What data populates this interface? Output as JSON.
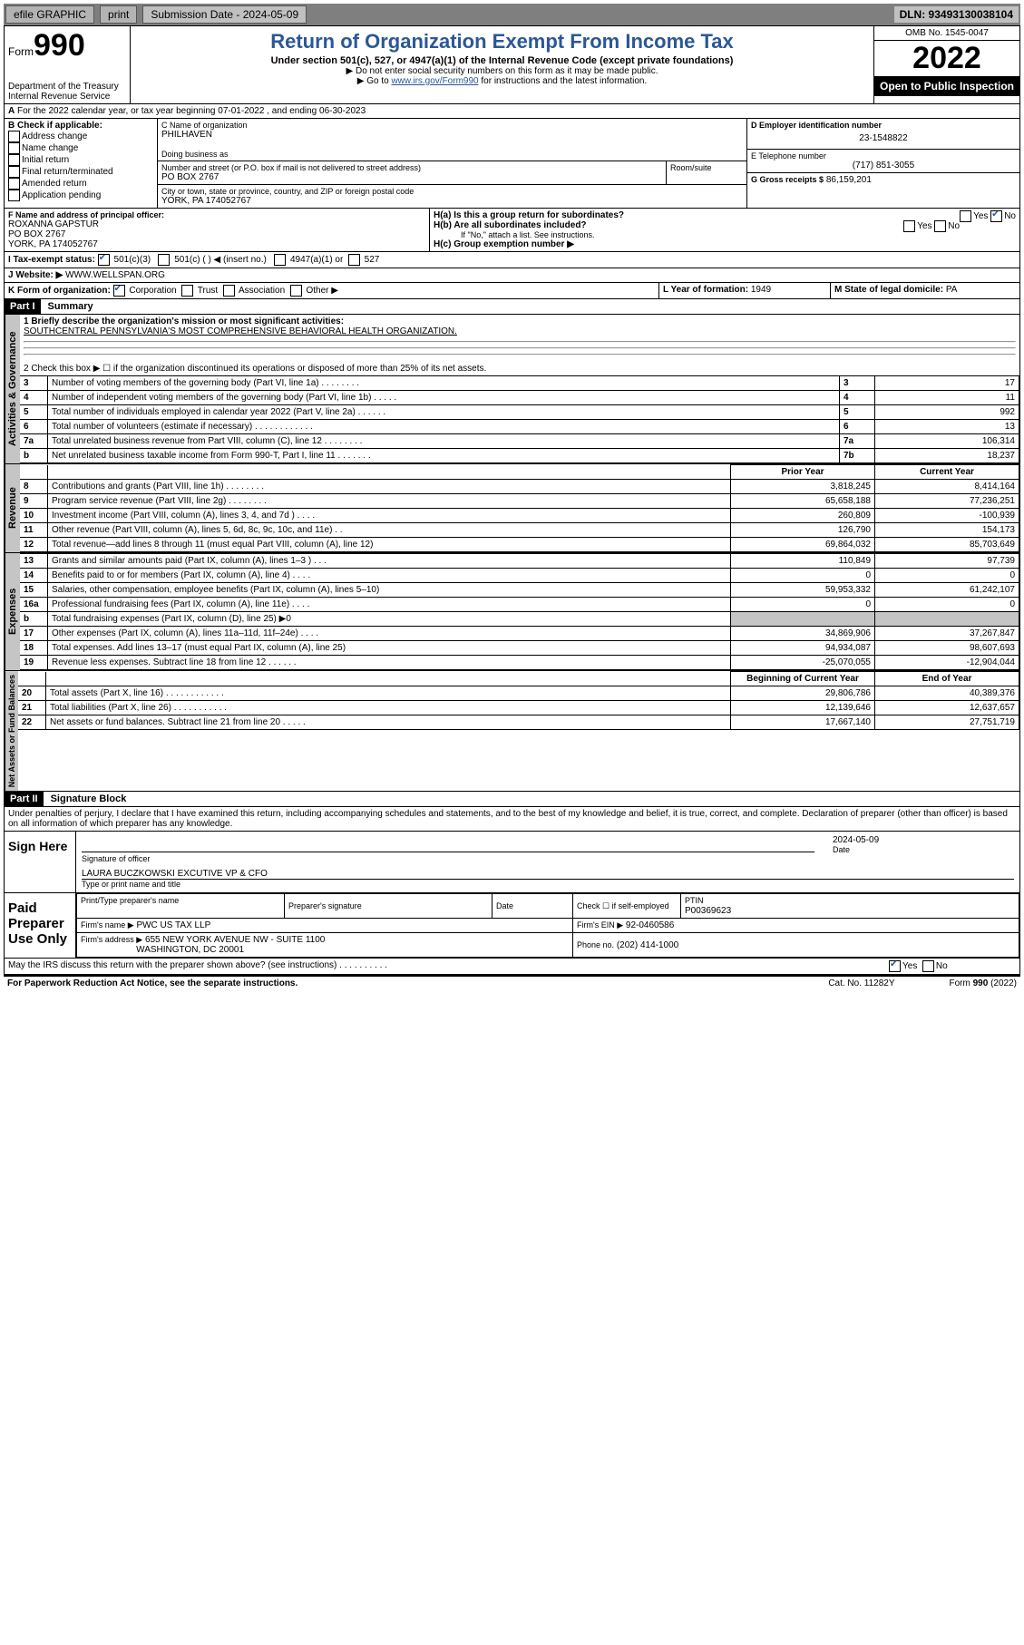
{
  "topbar": {
    "efile": "efile GRAPHIC",
    "print": "print",
    "submission": "Submission Date - 2024-05-09",
    "dln": "DLN: 93493130038104"
  },
  "header": {
    "form_word": "Form",
    "form_num": "990",
    "title": "Return of Organization Exempt From Income Tax",
    "sub": "Under section 501(c), 527, or 4947(a)(1) of the Internal Revenue Code (except private foundations)",
    "sub2a": "▶ Do not enter social security numbers on this form as it may be made public.",
    "sub2b_pre": "▶ Go to ",
    "sub2b_link": "www.irs.gov/Form990",
    "sub2b_post": " for instructions and the latest information.",
    "omb": "OMB No. 1545-0047",
    "year": "2022",
    "open_pub": "Open to Public Inspection",
    "dept": "Department of the Treasury",
    "irs": "Internal Revenue Service"
  },
  "a_line": "For the 2022 calendar year, or tax year beginning 07-01-2022    , and ending 06-30-2023",
  "b": {
    "title": "B Check if applicable:",
    "items": [
      "Address change",
      "Name change",
      "Initial return",
      "Final return/terminated",
      "Amended return",
      "Application pending"
    ]
  },
  "c": {
    "name_lbl": "C Name of organization",
    "name": "PHILHAVEN",
    "dba_lbl": "Doing business as",
    "dba": "",
    "addr_lbl": "Number and street (or P.O. box if mail is not delivered to street address)",
    "room_lbl": "Room/suite",
    "addr": "PO BOX 2767",
    "city_lbl": "City or town, state or province, country, and ZIP or foreign postal code",
    "city": "YORK, PA  174052767"
  },
  "d": {
    "lbl": "D Employer identification number",
    "val": "23-1548822"
  },
  "e": {
    "lbl": "E Telephone number",
    "val": "(717) 851-3055"
  },
  "g": {
    "lbl": "G Gross receipts $",
    "val": "86,159,201"
  },
  "f": {
    "lbl": "F  Name and address of principal officer:",
    "name": "ROXANNA GAPSTUR",
    "addr1": "PO BOX 2767",
    "addr2": "YORK, PA  174052767"
  },
  "h": {
    "a": "H(a)  Is this a group return for subordinates?",
    "b": "H(b)  Are all subordinates included?",
    "b_note": "If \"No,\" attach a list. See instructions.",
    "c": "H(c)  Group exemption number ▶",
    "yes": "Yes",
    "no": "No"
  },
  "i": {
    "lbl": "I    Tax-exempt status:",
    "o1": "501(c)(3)",
    "o2": "501(c) (   ) ◀ (insert no.)",
    "o3": "4947(a)(1) or",
    "o4": "527"
  },
  "j": {
    "lbl": "J    Website: ▶",
    "val": "WWW.WELLSPAN.ORG"
  },
  "k": {
    "lbl": "K Form of organization:",
    "o1": "Corporation",
    "o2": "Trust",
    "o3": "Association",
    "o4": "Other ▶"
  },
  "l": {
    "lbl": "L Year of formation:",
    "val": "1949"
  },
  "m": {
    "lbl": "M State of legal domicile:",
    "val": "PA"
  },
  "part1": {
    "tag": "Part I",
    "title": "Summary",
    "q1": "1   Briefly describe the organization's mission or most significant activities:",
    "mission": "SOUTHCENTRAL PENNSYLVANIA'S MOST COMPREHENSIVE BEHAVIORAL HEALTH ORGANIZATION.",
    "q2": "2   Check this box ▶ ☐  if the organization discontinued its operations or disposed of more than 25% of its net assets.",
    "rows_ag": [
      {
        "n": "3",
        "t": "Number of voting members of the governing body (Part VI, line 1a)  .    .    .    .    .    .    .    .",
        "b": "3",
        "v": "17"
      },
      {
        "n": "4",
        "t": "Number of independent voting members of the governing body (Part VI, line 1b)  .    .    .    .    .",
        "b": "4",
        "v": "11"
      },
      {
        "n": "5",
        "t": "Total number of individuals employed in calendar year 2022 (Part V, line 2a)  .    .    .    .    .    .",
        "b": "5",
        "v": "992"
      },
      {
        "n": "6",
        "t": "Total number of volunteers (estimate if necessary)  .    .    .    .    .    .    .    .    .    .    .    .",
        "b": "6",
        "v": "13"
      },
      {
        "n": "7a",
        "t": "Total unrelated business revenue from Part VIII, column (C), line 12  .    .    .    .    .    .    .    .",
        "b": "7a",
        "v": "106,314"
      },
      {
        "n": "b",
        "t": "Net unrelated business taxable income from Form 990-T, Part I, line 11  .    .    .    .    .    .    .",
        "b": "7b",
        "v": "18,237"
      }
    ],
    "hdr_py": "Prior Year",
    "hdr_cy": "Current Year",
    "rows_rev": [
      {
        "n": "8",
        "t": "Contributions and grants (Part VIII, line 1h)  .    .    .    .    .    .    .    .",
        "p": "3,818,245",
        "c": "8,414,164"
      },
      {
        "n": "9",
        "t": "Program service revenue (Part VIII, line 2g)  .    .    .    .    .    .    .    .",
        "p": "65,658,188",
        "c": "77,236,251"
      },
      {
        "n": "10",
        "t": "Investment income (Part VIII, column (A), lines 3, 4, and 7d )  .    .    .    .",
        "p": "260,809",
        "c": "-100,939"
      },
      {
        "n": "11",
        "t": "Other revenue (Part VIII, column (A), lines 5, 6d, 8c, 9c, 10c, and 11e)  .    .",
        "p": "126,790",
        "c": "154,173"
      },
      {
        "n": "12",
        "t": "Total revenue—add lines 8 through 11 (must equal Part VIII, column (A), line 12)",
        "p": "69,864,032",
        "c": "85,703,649"
      }
    ],
    "rows_exp": [
      {
        "n": "13",
        "t": "Grants and similar amounts paid (Part IX, column (A), lines 1–3 )  .    .    .",
        "p": "110,849",
        "c": "97,739"
      },
      {
        "n": "14",
        "t": "Benefits paid to or for members (Part IX, column (A), line 4)  .    .    .    .",
        "p": "0",
        "c": "0"
      },
      {
        "n": "15",
        "t": "Salaries, other compensation, employee benefits (Part IX, column (A), lines 5–10)",
        "p": "59,953,332",
        "c": "61,242,107"
      },
      {
        "n": "16a",
        "t": "Professional fundraising fees (Part IX, column (A), line 11e)  .    .    .    .",
        "p": "0",
        "c": "0"
      },
      {
        "n": "b",
        "t": "Total fundraising expenses (Part IX, column (D), line 25) ▶0",
        "p": "",
        "c": "",
        "gray": true
      },
      {
        "n": "17",
        "t": "Other expenses (Part IX, column (A), lines 11a–11d, 11f–24e)  .    .    .    .",
        "p": "34,869,906",
        "c": "37,267,847"
      },
      {
        "n": "18",
        "t": "Total expenses. Add lines 13–17 (must equal Part IX, column (A), line 25)",
        "p": "94,934,087",
        "c": "98,607,693"
      },
      {
        "n": "19",
        "t": "Revenue less expenses. Subtract line 18 from line 12  .    .    .    .    .    .",
        "p": "-25,070,055",
        "c": "-12,904,044"
      }
    ],
    "hdr_boy": "Beginning of Current Year",
    "hdr_eoy": "End of Year",
    "rows_na": [
      {
        "n": "20",
        "t": "Total assets (Part X, line 16)  .    .    .    .    .    .    .    .    .    .    .    .",
        "p": "29,806,786",
        "c": "40,389,376"
      },
      {
        "n": "21",
        "t": "Total liabilities (Part X, line 26)  .    .    .    .    .    .    .    .    .    .    .",
        "p": "12,139,646",
        "c": "12,637,657"
      },
      {
        "n": "22",
        "t": "Net assets or fund balances. Subtract line 21 from line 20  .    .    .    .    .",
        "p": "17,667,140",
        "c": "27,751,719"
      }
    ],
    "vtabs": {
      "ag": "Activities & Governance",
      "rev": "Revenue",
      "exp": "Expenses",
      "na": "Net Assets or Fund Balances"
    }
  },
  "part2": {
    "tag": "Part II",
    "title": "Signature Block",
    "perjury": "Under penalties of perjury, I declare that I have examined this return, including accompanying schedules and statements, and to the best of my knowledge and belief, it is true, correct, and complete. Declaration of preparer (other than officer) is based on all information of which preparer has any knowledge.",
    "sign_here": "Sign Here",
    "sig_officer": "Signature of officer",
    "date_lbl": "Date",
    "date_val": "2024-05-09",
    "officer_name": "LAURA BUCZKOWSKI  EXCUTIVE VP & CFO",
    "type_name": "Type or print name and title",
    "paid": "Paid Preparer Use Only",
    "pt_name_lbl": "Print/Type preparer's name",
    "pt_sig_lbl": "Preparer's signature",
    "pt_date_lbl": "Date",
    "pt_check": "Check ☐ if self-employed",
    "pt_ptin_lbl": "PTIN",
    "pt_ptin": "P00369623",
    "firm_name_lbl": "Firm's name    ▶",
    "firm_name": "PWC US TAX LLP",
    "firm_ein_lbl": "Firm's EIN ▶",
    "firm_ein": "92-0460586",
    "firm_addr_lbl": "Firm's address ▶",
    "firm_addr1": "655 NEW YORK AVENUE NW - SUITE 1100",
    "firm_addr2": "WASHINGTON, DC  20001",
    "phone_lbl": "Phone no.",
    "phone": "(202) 414-1000",
    "discuss": "May the IRS discuss this return with the preparer shown above? (see instructions)  .    .    .    .    .    .    .    .    .    .",
    "yes": "Yes",
    "no": "No"
  },
  "footer": {
    "pra": "For Paperwork Reduction Act Notice, see the separate instructions.",
    "cat": "Cat. No. 11282Y",
    "form": "Form 990 (2022)"
  }
}
